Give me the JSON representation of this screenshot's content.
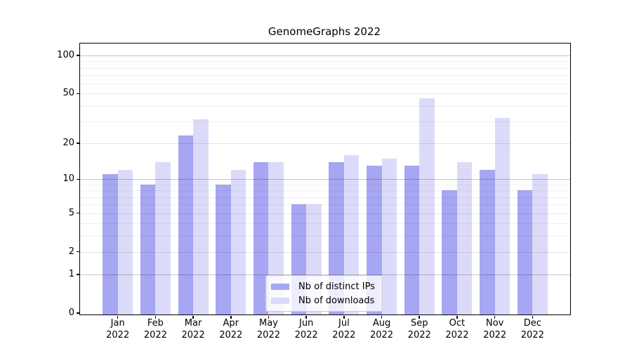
{
  "chart_data": {
    "type": "bar",
    "title": "GenomeGraphs 2022",
    "categories": [
      "Jan",
      "Feb",
      "Mar",
      "Apr",
      "May",
      "Jun",
      "Jul",
      "Aug",
      "Sep",
      "Oct",
      "Nov",
      "Dec"
    ],
    "year": "2022",
    "series": [
      {
        "name": "Nb of distinct IPs",
        "color": "#a6a6f2",
        "values": [
          11,
          9,
          23,
          9,
          14,
          6,
          14,
          13,
          13,
          8,
          12,
          8
        ]
      },
      {
        "name": "Nb of downloads",
        "color": "#dbdbf9",
        "values": [
          12,
          14,
          31,
          12,
          14,
          6,
          16,
          15,
          46,
          14,
          32,
          11
        ]
      }
    ],
    "y_ticks": [
      0,
      1,
      2,
      5,
      10,
      20,
      50,
      100
    ],
    "y_major_gridlines": [
      1,
      10,
      100
    ],
    "y_minor_gridlines": [
      3,
      4,
      6,
      7,
      8,
      9,
      30,
      40,
      60,
      70,
      80,
      90
    ],
    "scale": "log1p",
    "ylim": [
      0,
      124
    ],
    "grid": true,
    "legend_position": "lower center",
    "xlabel": "",
    "ylabel": ""
  }
}
